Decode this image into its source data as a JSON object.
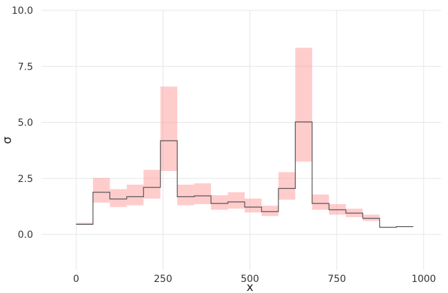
{
  "chart_data": {
    "type": "line",
    "title": "",
    "xlabel": "x",
    "ylabel": "σ",
    "xlim": [
      -100,
      1050
    ],
    "ylim": [
      -1.6,
      10.0
    ],
    "xticks": [
      0,
      250,
      500,
      750,
      1000
    ],
    "xtick_labels": [
      "0",
      "250",
      "500",
      "750",
      "1000"
    ],
    "yticks": [
      0.0,
      2.5,
      5.0,
      7.5,
      10.0
    ],
    "ytick_labels": [
      "0.0",
      "2.5",
      "5.0",
      "7.5",
      "10.0"
    ],
    "grid": true,
    "colors": {
      "band": "#ff9a9a",
      "line": "#555555",
      "grid": "#e6e6e6"
    },
    "bins": [
      {
        "x0": 0,
        "x1": 48.5,
        "value": 0.45,
        "low": 0.42,
        "high": 0.52
      },
      {
        "x0": 48.5,
        "x1": 97,
        "value": 1.88,
        "low": 1.42,
        "high": 2.52
      },
      {
        "x0": 97,
        "x1": 145.5,
        "value": 1.58,
        "low": 1.22,
        "high": 2.02
      },
      {
        "x0": 145.5,
        "x1": 194,
        "value": 1.68,
        "low": 1.3,
        "high": 2.22
      },
      {
        "x0": 194,
        "x1": 242.5,
        "value": 2.1,
        "low": 1.6,
        "high": 2.88
      },
      {
        "x0": 242.5,
        "x1": 291,
        "value": 4.18,
        "low": 2.83,
        "high": 6.6
      },
      {
        "x0": 291,
        "x1": 339.5,
        "value": 1.68,
        "low": 1.3,
        "high": 2.22
      },
      {
        "x0": 339.5,
        "x1": 388,
        "value": 1.72,
        "low": 1.35,
        "high": 2.28
      },
      {
        "x0": 388,
        "x1": 436.5,
        "value": 1.38,
        "low": 1.1,
        "high": 1.75
      },
      {
        "x0": 436.5,
        "x1": 485,
        "value": 1.45,
        "low": 1.15,
        "high": 1.88
      },
      {
        "x0": 485,
        "x1": 533.5,
        "value": 1.22,
        "low": 0.98,
        "high": 1.6
      },
      {
        "x0": 533.5,
        "x1": 582,
        "value": 1.02,
        "low": 0.82,
        "high": 1.28
      },
      {
        "x0": 582,
        "x1": 630.5,
        "value": 2.05,
        "low": 1.55,
        "high": 2.78
      },
      {
        "x0": 630.5,
        "x1": 679,
        "value": 5.02,
        "low": 3.25,
        "high": 8.33
      },
      {
        "x0": 679,
        "x1": 727.5,
        "value": 1.38,
        "low": 1.1,
        "high": 1.78
      },
      {
        "x0": 727.5,
        "x1": 776,
        "value": 1.1,
        "low": 0.88,
        "high": 1.35
      },
      {
        "x0": 776,
        "x1": 824.5,
        "value": 0.95,
        "low": 0.77,
        "high": 1.15
      },
      {
        "x0": 824.5,
        "x1": 873,
        "value": 0.72,
        "low": 0.6,
        "high": 0.88
      },
      {
        "x0": 873,
        "x1": 921.5,
        "value": 0.32,
        "low": 0.3,
        "high": 0.34
      },
      {
        "x0": 921.5,
        "x1": 970,
        "value": 0.35,
        "low": 0.33,
        "high": 0.37
      }
    ]
  }
}
